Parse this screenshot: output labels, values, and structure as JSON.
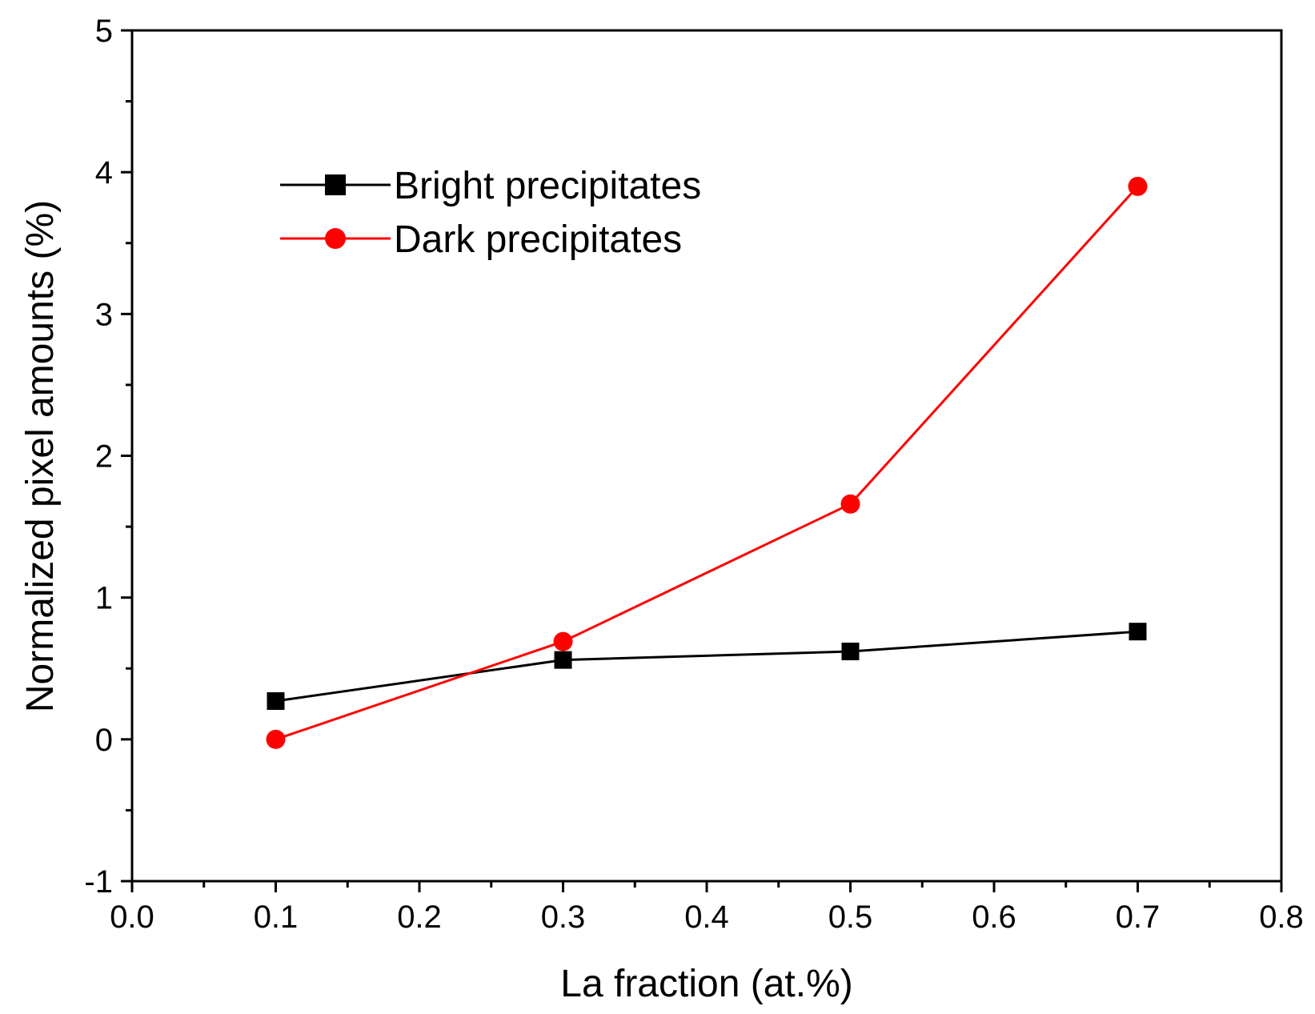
{
  "chart_data": {
    "type": "line",
    "title": "",
    "xlabel": "La fraction (at.%)",
    "ylabel": "Normalized pixel amounts (%)",
    "xlim": [
      0.0,
      0.8
    ],
    "ylim": [
      -1,
      5
    ],
    "x_ticks": [
      "0.0",
      "0.1",
      "0.2",
      "0.3",
      "0.4",
      "0.5",
      "0.6",
      "0.7",
      "0.8"
    ],
    "y_ticks": [
      "-1",
      "0",
      "1",
      "2",
      "3",
      "4",
      "5"
    ],
    "grid": false,
    "legend_position": "top-left",
    "series": [
      {
        "name": "Bright precipitates",
        "color": "#000000",
        "marker": "square",
        "x": [
          0.1,
          0.3,
          0.5,
          0.7
        ],
        "y": [
          0.27,
          0.56,
          0.62,
          0.76
        ]
      },
      {
        "name": "Dark precipitates",
        "color": "#ff0000",
        "marker": "circle",
        "x": [
          0.1,
          0.3,
          0.5,
          0.7
        ],
        "y": [
          0.0,
          0.69,
          1.66,
          3.9
        ]
      }
    ]
  }
}
